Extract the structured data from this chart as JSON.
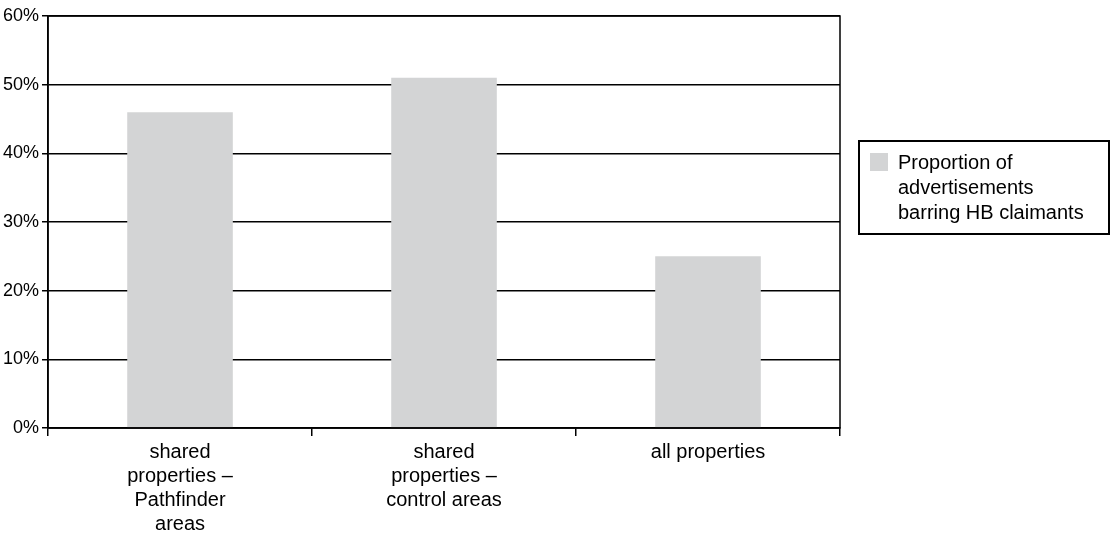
{
  "chart_data": {
    "type": "bar",
    "categories": [
      "shared properties – Pathfinder areas",
      "shared properties – control areas",
      "all properties"
    ],
    "series": [
      {
        "name": "Proportion of advertisements barring HB claimants",
        "color": "#d3d4d5",
        "values": [
          46,
          51,
          25
        ]
      }
    ],
    "ylim": [
      0,
      60
    ],
    "yticks": [
      {
        "value": 0,
        "label": "0%"
      },
      {
        "value": 10,
        "label": "10%"
      },
      {
        "value": 20,
        "label": "20%"
      },
      {
        "value": 30,
        "label": "30%"
      },
      {
        "value": 40,
        "label": "40%"
      },
      {
        "value": 50,
        "label": "50%"
      },
      {
        "value": 60,
        "label": "60%"
      }
    ],
    "grid": "y",
    "legend": "right"
  }
}
